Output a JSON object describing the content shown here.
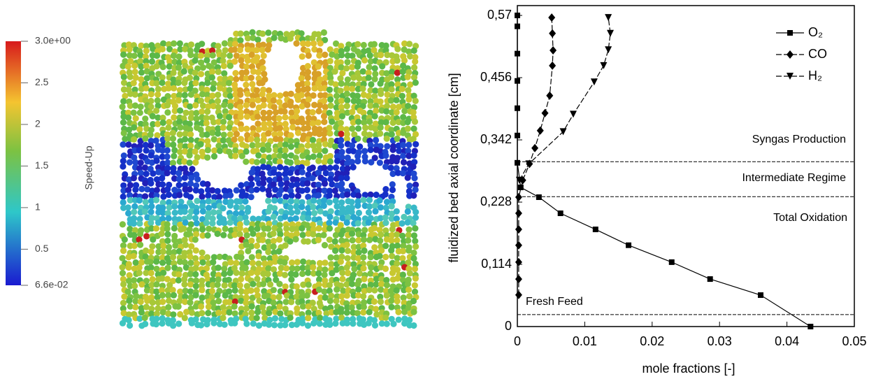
{
  "colorbar": {
    "title": "Speed-Up",
    "lim": [
      0.066,
      3
    ],
    "ticks": [
      {
        "value": 3,
        "label": "3.0e+00"
      },
      2.5,
      2,
      1.5,
      1,
      0.5,
      {
        "value": 0.066,
        "label": "6.6e-02"
      }
    ]
  },
  "chart_data": {
    "type": "line",
    "xlabel": "mole fractions [-]",
    "ylabel": "fluidized bed axial coordinate [cm]",
    "xlim": [
      0,
      0.05
    ],
    "xticks": [
      0,
      0.01,
      0.02,
      0.03,
      0.04,
      0.05
    ],
    "ylim": [
      0,
      0.588
    ],
    "yticks": [
      0,
      {
        "value": 0.114,
        "label": "0,114"
      },
      {
        "value": 0.228,
        "label": "0,228"
      },
      {
        "value": 0.342,
        "label": "0,342"
      },
      {
        "value": 0.456,
        "label": "0,456"
      },
      {
        "value": 0.57,
        "label": "0,57"
      }
    ],
    "legend": "upper right",
    "hlines": [
      0.302,
      0.238,
      0.022
    ],
    "annotations": [
      "Syngas Production",
      "Intermediate Regime",
      "Total Oxidation",
      "Fresh Feed"
    ],
    "series": [
      {
        "name": "O₂",
        "color": "#000000",
        "marker": "square",
        "line_style": "solid",
        "x": [
          0.0435,
          0.0361,
          0.0286,
          0.0229,
          0.0165,
          0.0116,
          0.0064,
          0.0032,
          0.0005,
          0,
          0,
          0,
          0,
          0,
          0,
          0
        ],
        "values": [
          0,
          0.0576,
          0.087,
          0.118,
          0.149,
          0.178,
          0.2075,
          0.237,
          0.255,
          0.3,
          0.35,
          0.4,
          0.45,
          0.5,
          0.55,
          0.57
        ]
      },
      {
        "name": "CO",
        "color": "#000000",
        "marker": "diamond",
        "line_style": "dashed",
        "x": [
          0.0002,
          0.0002,
          0.0002,
          0.0002,
          0.0002,
          0.0002,
          0.0002,
          0.0008,
          0.0018,
          0.0026,
          0.0034,
          0.0041,
          0.0048,
          0.0052,
          0.0053,
          0.0052,
          0.0051
        ],
        "values": [
          0.058,
          0.087,
          0.118,
          0.149,
          0.178,
          0.2075,
          0.237,
          0.268,
          0.298,
          0.327,
          0.359,
          0.391,
          0.423,
          0.478,
          0.506,
          0.537,
          0.566
        ]
      },
      {
        "name": "H₂",
        "color": "#000000",
        "marker": "triangle-down",
        "line_style": "dashed",
        "x": [
          0.0003,
          0.0017,
          0.0068,
          0.0083,
          0.0114,
          0.0128,
          0.0135,
          0.0138,
          0.0135
        ],
        "values": [
          0.268,
          0.298,
          0.357,
          0.389,
          0.448,
          0.478,
          0.507,
          0.537,
          0.566
        ]
      }
    ]
  }
}
